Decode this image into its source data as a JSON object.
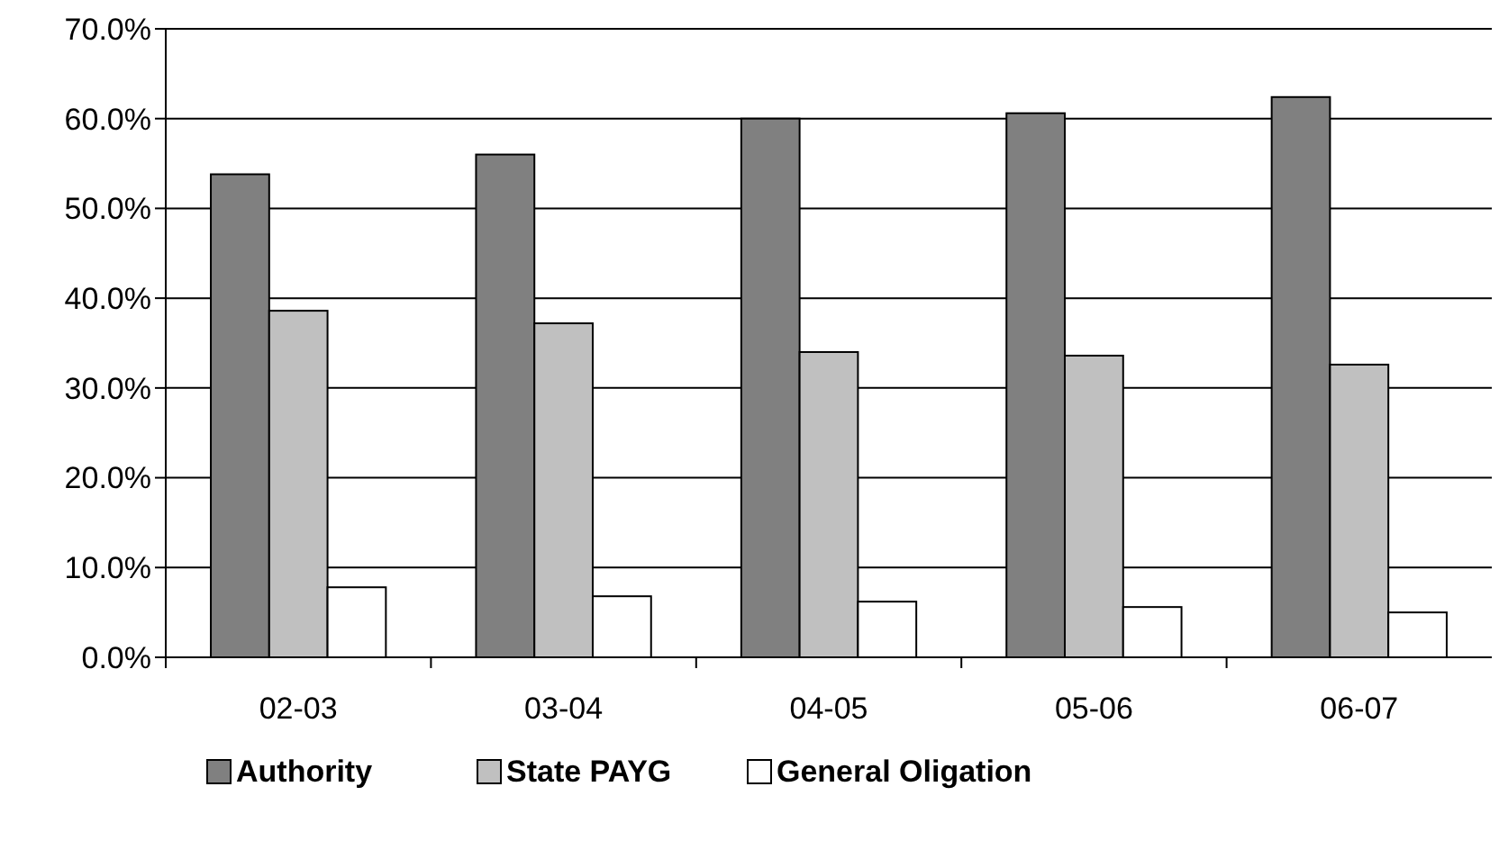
{
  "chart_data": {
    "type": "bar",
    "categories": [
      "02-03",
      "03-04",
      "04-05",
      "05-06",
      "06-07"
    ],
    "series": [
      {
        "name": "Authority",
        "color": "#808080",
        "values": [
          53.8,
          56.0,
          60.0,
          60.6,
          62.4
        ]
      },
      {
        "name": "State PAYG",
        "color": "#c0c0c0",
        "values": [
          38.6,
          37.2,
          34.0,
          33.6,
          32.6
        ]
      },
      {
        "name": "General Oligation",
        "color": "#ffffff",
        "values": [
          7.8,
          6.8,
          6.2,
          5.6,
          5.0
        ]
      }
    ],
    "ylim": [
      0,
      70
    ],
    "yticks": [
      {
        "value": 0,
        "label": "0.0%"
      },
      {
        "value": 10,
        "label": "10.0%"
      },
      {
        "value": 20,
        "label": "20.0%"
      },
      {
        "value": 30,
        "label": "30.0%"
      },
      {
        "value": 40,
        "label": "40.0%"
      },
      {
        "value": 50,
        "label": "50.0%"
      },
      {
        "value": 60,
        "label": "60.0%"
      },
      {
        "value": 70,
        "label": "70.0%"
      }
    ],
    "grid": "y",
    "legend": "bottom"
  }
}
